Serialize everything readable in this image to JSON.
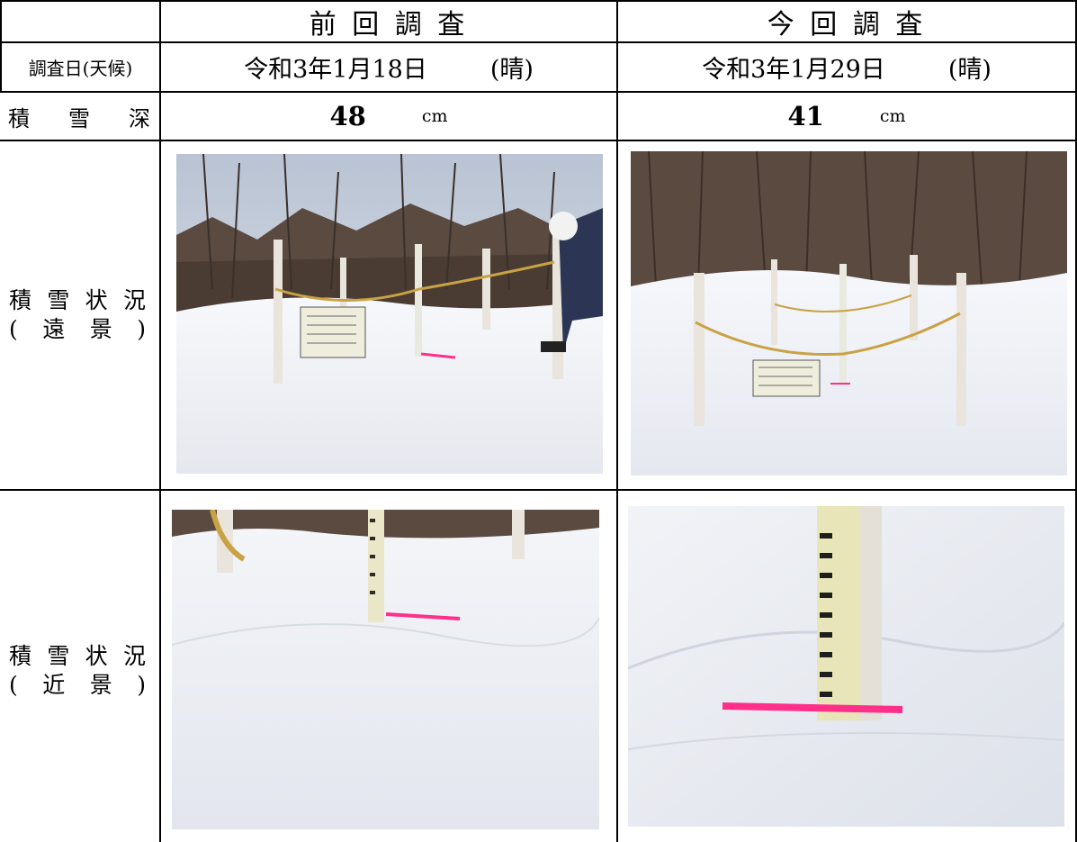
{
  "header": {
    "previous_survey": "前 回 調 査",
    "current_survey": "今 回 調 査"
  },
  "rows": {
    "date_label": "調査日(天候)",
    "depth_label": [
      "積",
      "雪",
      "深"
    ],
    "far_label": {
      "line1": [
        "積",
        "雪",
        "状",
        "況"
      ],
      "line2": [
        "(",
        "遠",
        "景",
        ")"
      ]
    },
    "near_label": {
      "line1": [
        "積",
        "雪",
        "状",
        "況"
      ],
      "line2": [
        "(",
        "近",
        "景",
        ")"
      ]
    }
  },
  "previous": {
    "date": "令和3年1月18日",
    "weather": "(晴)",
    "depth_value": "48",
    "depth_unit": "cm"
  },
  "current": {
    "date": "令和3年1月29日",
    "weather": "(晴)",
    "depth_value": "41",
    "depth_unit": "cm"
  },
  "colors": {
    "snow": "#f4f5f8",
    "sky": "#d9dde6",
    "forest": "#4a3f38",
    "marker": "#ff2f8a",
    "rope": "#c9a245"
  }
}
